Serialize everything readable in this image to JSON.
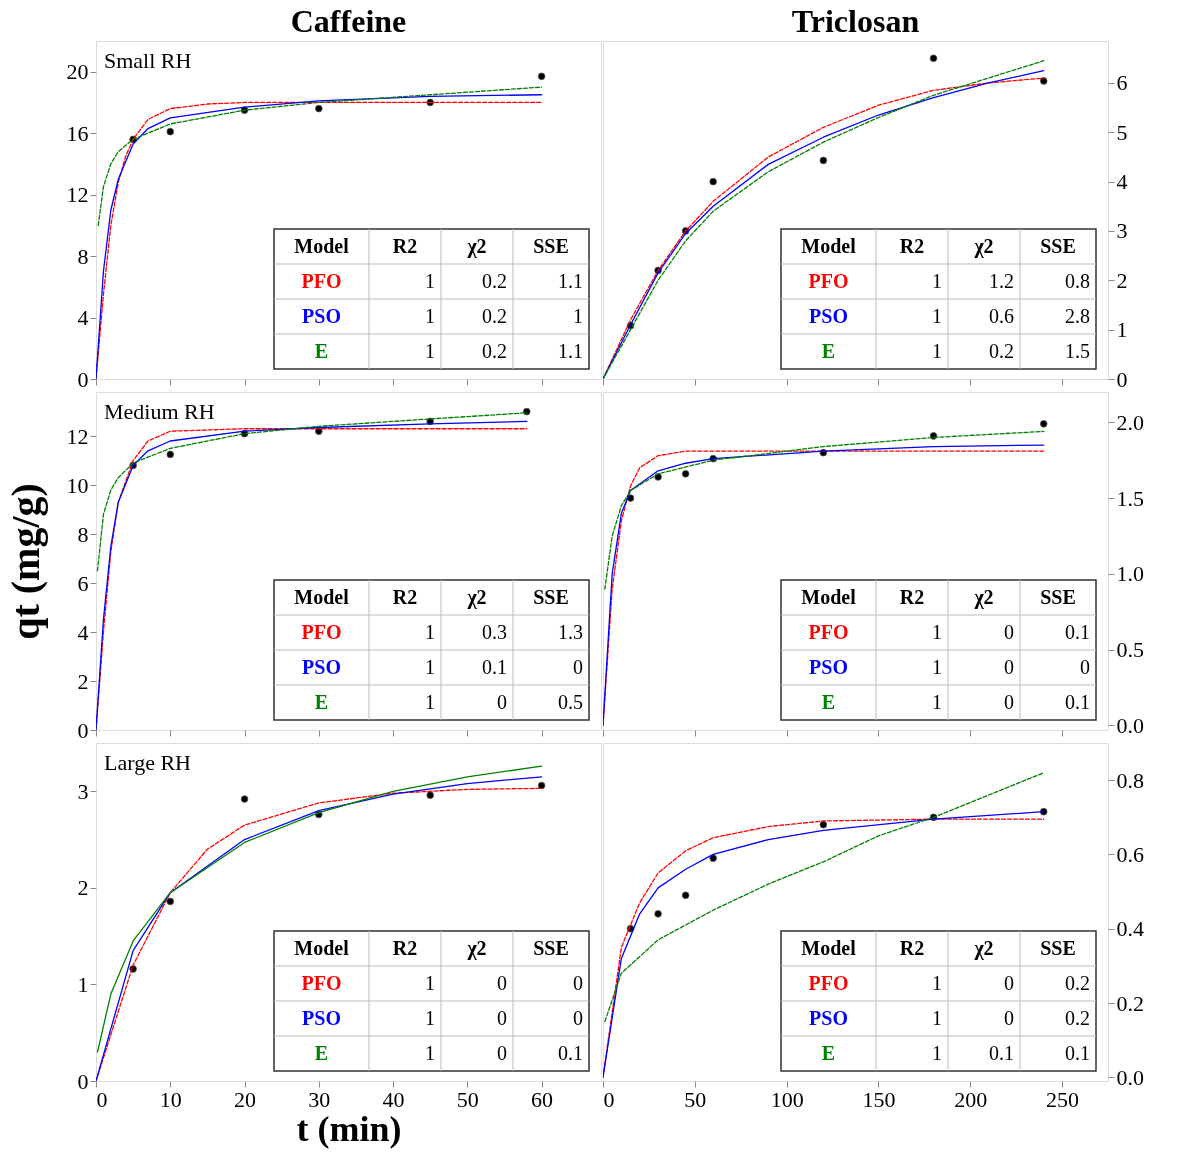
{
  "chart_data": [
    {
      "type": "line",
      "title": "Caffeine",
      "subtitle": "Small RH",
      "xlim": [
        0,
        68
      ],
      "ylim": [
        0,
        22
      ],
      "xticks": [
        0,
        10,
        20,
        30,
        40,
        50,
        60
      ],
      "yticks": [
        0,
        4,
        8,
        12,
        16,
        20
      ],
      "tick_labels": "y",
      "grid": false,
      "series": [
        {
          "type": "scatter",
          "marker": "circle",
          "color": "#000000",
          "x": [
            5,
            10,
            20,
            30,
            45,
            60
          ],
          "values": [
            15.6,
            16.1,
            17.5,
            17.6,
            18.0,
            19.7
          ]
        },
        {
          "type": "line",
          "line_style": "dashed",
          "color": "#ff0000",
          "x": [
            0,
            1,
            2,
            3,
            4,
            5,
            7,
            10,
            15,
            20,
            60
          ],
          "values": [
            0,
            5.5,
            10,
            12.8,
            14.5,
            15.6,
            16.9,
            17.6,
            17.9,
            18.0,
            18.0
          ]
        },
        {
          "type": "line",
          "line_style": "solid",
          "color": "#0000ff",
          "x": [
            0,
            1,
            2,
            3,
            5,
            7,
            10,
            20,
            30,
            45,
            60
          ],
          "values": [
            0,
            7,
            11,
            13,
            15.3,
            16.3,
            17,
            17.7,
            18.1,
            18.4,
            18.5
          ]
        },
        {
          "type": "line",
          "line_style": "dashed",
          "color": "#008000",
          "x": [
            0.3,
            1,
            2,
            3,
            5,
            10,
            20,
            30,
            45,
            60
          ],
          "values": [
            10,
            12.5,
            14,
            14.8,
            15.6,
            16.6,
            17.5,
            18,
            18.5,
            19.0
          ]
        }
      ],
      "annotations": [
        "Model",
        "R2",
        "χ2",
        "SSE",
        "PFO",
        "1",
        "0.2",
        "1.1",
        "PSO",
        "1",
        "0.2",
        "1",
        "E",
        "1",
        "0.2",
        "1.1"
      ]
    },
    {
      "type": "line",
      "title": "Triclosan",
      "xlim": [
        0,
        275
      ],
      "ylim": [
        0,
        6.85
      ],
      "xticks": [
        0,
        50,
        100,
        150,
        200,
        250
      ],
      "yticks": [
        0,
        1,
        2,
        3,
        4,
        5,
        6
      ],
      "tick_labels": "y",
      "grid": false,
      "series": [
        {
          "type": "scatter",
          "marker": "circle",
          "color": "#000000",
          "x": [
            15,
            30,
            45,
            60,
            120,
            180,
            240
          ],
          "values": [
            1.08,
            2.2,
            3.0,
            4.0,
            4.43,
            6.5,
            6.04
          ]
        },
        {
          "type": "line",
          "line_style": "dashed",
          "color": "#ff0000",
          "x": [
            0,
            15,
            30,
            45,
            60,
            90,
            120,
            150,
            180,
            210,
            240
          ],
          "values": [
            0,
            1.2,
            2.2,
            3.0,
            3.6,
            4.5,
            5.1,
            5.55,
            5.85,
            6.0,
            6.1
          ]
        },
        {
          "type": "line",
          "line_style": "solid",
          "color": "#0000ff",
          "x": [
            0,
            15,
            30,
            45,
            60,
            90,
            120,
            150,
            180,
            210,
            240
          ],
          "values": [
            0,
            1.1,
            2.15,
            2.95,
            3.5,
            4.35,
            4.9,
            5.35,
            5.7,
            6.0,
            6.25
          ]
        },
        {
          "type": "line",
          "line_style": "dashed",
          "color": "#008000",
          "x": [
            0,
            15,
            30,
            45,
            60,
            90,
            120,
            150,
            180,
            210,
            240
          ],
          "values": [
            0,
            1.0,
            2.0,
            2.8,
            3.4,
            4.2,
            4.8,
            5.3,
            5.75,
            6.1,
            6.45
          ]
        }
      ],
      "annotations": [
        "Model",
        "R2",
        "χ2",
        "SSE",
        "PFO",
        "1",
        "1.2",
        "0.8",
        "PSO",
        "1",
        "0.6",
        "2.8",
        "E",
        "1",
        "0.2",
        "1.5"
      ]
    },
    {
      "type": "line",
      "subtitle": "Medium RH",
      "ylabel": "qt (mg/g)",
      "xlim": [
        0,
        68
      ],
      "ylim": [
        0,
        13.8
      ],
      "xticks": [
        0,
        10,
        20,
        30,
        40,
        50,
        60
      ],
      "yticks": [
        0,
        2,
        4,
        6,
        8,
        10,
        12
      ],
      "tick_labels": "y",
      "grid": false,
      "series": [
        {
          "type": "scatter",
          "marker": "circle",
          "color": "#000000",
          "x": [
            5,
            10,
            20,
            30,
            45,
            58
          ],
          "values": [
            10.8,
            11.25,
            12.1,
            12.2,
            12.6,
            13.0
          ]
        },
        {
          "type": "line",
          "line_style": "dashed",
          "color": "#ff0000",
          "x": [
            0,
            1,
            2,
            3,
            5,
            7,
            10,
            20,
            58
          ],
          "values": [
            0,
            4,
            7.3,
            9.3,
            11.0,
            11.8,
            12.2,
            12.3,
            12.3
          ]
        },
        {
          "type": "line",
          "line_style": "solid",
          "color": "#0000ff",
          "x": [
            0,
            1,
            2,
            3,
            5,
            7,
            10,
            20,
            30,
            45,
            58
          ],
          "values": [
            0,
            4.5,
            7.5,
            9.3,
            10.8,
            11.4,
            11.8,
            12.2,
            12.35,
            12.5,
            12.6
          ]
        },
        {
          "type": "line",
          "line_style": "dashed",
          "color": "#008000",
          "x": [
            0.2,
            1,
            2,
            3,
            5,
            10,
            20,
            30,
            45,
            58
          ],
          "values": [
            6.5,
            8.8,
            9.8,
            10.3,
            10.9,
            11.5,
            12.1,
            12.4,
            12.7,
            12.95
          ]
        }
      ],
      "annotations": [
        "Model",
        "R2",
        "χ2",
        "SSE",
        "PFO",
        "1",
        "0.3",
        "1.3",
        "PSO",
        "1",
        "0.1",
        "0",
        "E",
        "1",
        "0",
        "0.5"
      ]
    },
    {
      "type": "line",
      "xlim": [
        0,
        275
      ],
      "ylim": [
        -0.03,
        2.2
      ],
      "xticks": [
        0,
        50,
        100,
        150,
        200,
        250
      ],
      "yticks": [
        {
          "value": 0,
          "label": "0.0"
        },
        0.5,
        {
          "value": 1,
          "label": "1.0"
        },
        1.5,
        {
          "value": 2,
          "label": "2.0"
        }
      ],
      "tick_labels": "y",
      "grid": false,
      "series": [
        {
          "type": "scatter",
          "marker": "circle",
          "color": "#000000",
          "x": [
            15,
            30,
            45,
            60,
            120,
            180,
            240
          ],
          "values": [
            1.5,
            1.64,
            1.66,
            1.76,
            1.8,
            1.91,
            1.99
          ]
        },
        {
          "type": "line",
          "line_style": "dashed",
          "color": "#ff0000",
          "x": [
            0,
            5,
            10,
            15,
            20,
            30,
            45,
            60,
            240
          ],
          "values": [
            0,
            0.9,
            1.35,
            1.58,
            1.7,
            1.78,
            1.81,
            1.81,
            1.81
          ]
        },
        {
          "type": "line",
          "line_style": "solid",
          "color": "#0000ff",
          "x": [
            0,
            5,
            10,
            15,
            30,
            45,
            60,
            120,
            180,
            240
          ],
          "values": [
            0,
            1.0,
            1.4,
            1.55,
            1.68,
            1.73,
            1.76,
            1.81,
            1.84,
            1.85
          ]
        },
        {
          "type": "line",
          "line_style": "dashed",
          "color": "#008000",
          "x": [
            1,
            5,
            10,
            15,
            30,
            60,
            120,
            180,
            240
          ],
          "values": [
            0.9,
            1.25,
            1.45,
            1.55,
            1.66,
            1.75,
            1.84,
            1.9,
            1.94
          ]
        }
      ],
      "annotations": [
        "Model",
        "R2",
        "χ2",
        "SSE",
        "PFO",
        "1",
        "0",
        "0.1",
        "PSO",
        "1",
        "0",
        "0",
        "E",
        "1",
        "0",
        "0.1"
      ]
    },
    {
      "type": "line",
      "subtitle": "Large RH",
      "xlabel": "t (min)",
      "xlim": [
        0,
        68
      ],
      "ylim": [
        0,
        3.5
      ],
      "xticks": [
        0,
        10,
        20,
        30,
        40,
        50,
        60
      ],
      "yticks": [
        0,
        1,
        2,
        3
      ],
      "grid": false,
      "series": [
        {
          "type": "scatter",
          "marker": "circle",
          "color": "#000000",
          "x": [
            5,
            10,
            20,
            30,
            45,
            60
          ],
          "values": [
            1.16,
            1.86,
            2.92,
            2.76,
            2.96,
            3.06
          ]
        },
        {
          "type": "line",
          "line_style": "dashed",
          "color": "#ff0000",
          "x": [
            0,
            5,
            10,
            15,
            20,
            30,
            40,
            50,
            60
          ],
          "values": [
            0,
            1.2,
            1.95,
            2.4,
            2.65,
            2.88,
            2.98,
            3.02,
            3.03
          ]
        },
        {
          "type": "line",
          "line_style": "solid",
          "color": "#0000ff",
          "x": [
            0,
            5,
            10,
            20,
            30,
            40,
            50,
            60
          ],
          "values": [
            0,
            1.35,
            1.95,
            2.5,
            2.8,
            2.97,
            3.08,
            3.15
          ]
        },
        {
          "type": "line",
          "line_style": "solid",
          "color": "#008000",
          "x": [
            0.2,
            2,
            5,
            10,
            20,
            30,
            40,
            50,
            60
          ],
          "values": [
            0.3,
            0.9,
            1.45,
            1.95,
            2.47,
            2.78,
            3.0,
            3.15,
            3.26
          ]
        }
      ],
      "annotations": [
        "Model",
        "R2",
        "χ2",
        "SSE",
        "PFO",
        "1",
        "0",
        "0",
        "PSO",
        "1",
        "0",
        "0",
        "E",
        "1",
        "0",
        "0.1"
      ]
    },
    {
      "type": "line",
      "xlim": [
        0,
        275
      ],
      "ylim": [
        -0.01,
        0.9
      ],
      "xticks": [
        0,
        50,
        100,
        150,
        200,
        250
      ],
      "yticks": [
        {
          "value": 0,
          "label": "0.0"
        },
        0.2,
        0.4,
        0.6,
        0.8
      ],
      "grid": false,
      "series": [
        {
          "type": "scatter",
          "marker": "circle",
          "color": "#000000",
          "x": [
            15,
            30,
            45,
            60,
            120,
            180,
            240
          ],
          "values": [
            0.4,
            0.44,
            0.49,
            0.59,
            0.68,
            0.7,
            0.715
          ]
        },
        {
          "type": "line",
          "line_style": "dashed",
          "color": "#ff0000",
          "x": [
            0,
            10,
            20,
            30,
            45,
            60,
            90,
            120,
            180,
            240
          ],
          "values": [
            0,
            0.35,
            0.47,
            0.55,
            0.61,
            0.645,
            0.675,
            0.69,
            0.695,
            0.695
          ]
        },
        {
          "type": "line",
          "line_style": "solid",
          "color": "#0000ff",
          "x": [
            0,
            10,
            20,
            30,
            45,
            60,
            90,
            120,
            180,
            240
          ],
          "values": [
            0,
            0.32,
            0.44,
            0.51,
            0.56,
            0.6,
            0.64,
            0.665,
            0.695,
            0.715
          ]
        },
        {
          "type": "line",
          "line_style": "dashed",
          "color": "#008000",
          "x": [
            1,
            10,
            30,
            60,
            90,
            120,
            150,
            180,
            210,
            240
          ],
          "values": [
            0.15,
            0.28,
            0.37,
            0.45,
            0.52,
            0.58,
            0.65,
            0.7,
            0.76,
            0.82
          ]
        }
      ],
      "annotations": [
        "Model",
        "R2",
        "χ2",
        "SSE",
        "PFO",
        "1",
        "0",
        "0.2",
        "PSO",
        "1",
        "0",
        "0.2",
        "E",
        "1",
        "0.1",
        "0.1"
      ]
    }
  ]
}
